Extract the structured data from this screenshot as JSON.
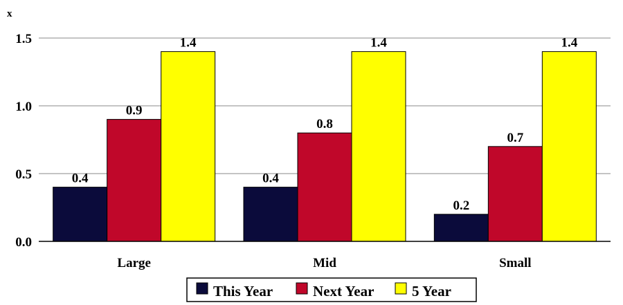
{
  "chart_data": {
    "type": "bar",
    "unit_label": "x",
    "categories": [
      "Large",
      "Mid",
      "Small"
    ],
    "series": [
      {
        "name": "This Year",
        "values": [
          0.4,
          0.4,
          0.2
        ],
        "color": "#0b0b3b"
      },
      {
        "name": "Next Year",
        "values": [
          0.9,
          0.8,
          0.7
        ],
        "color": "#c0072a"
      },
      {
        "name": "5 Year",
        "values": [
          1.4,
          1.4,
          1.4
        ],
        "color": "#ffff00"
      }
    ],
    "yticks": [
      "0.0",
      "0.5",
      "1.0",
      "1.5"
    ],
    "ylim": [
      0,
      1.5
    ],
    "grid": true,
    "legend": "bottom-center",
    "title": "",
    "xlabel": "",
    "ylabel": ""
  }
}
